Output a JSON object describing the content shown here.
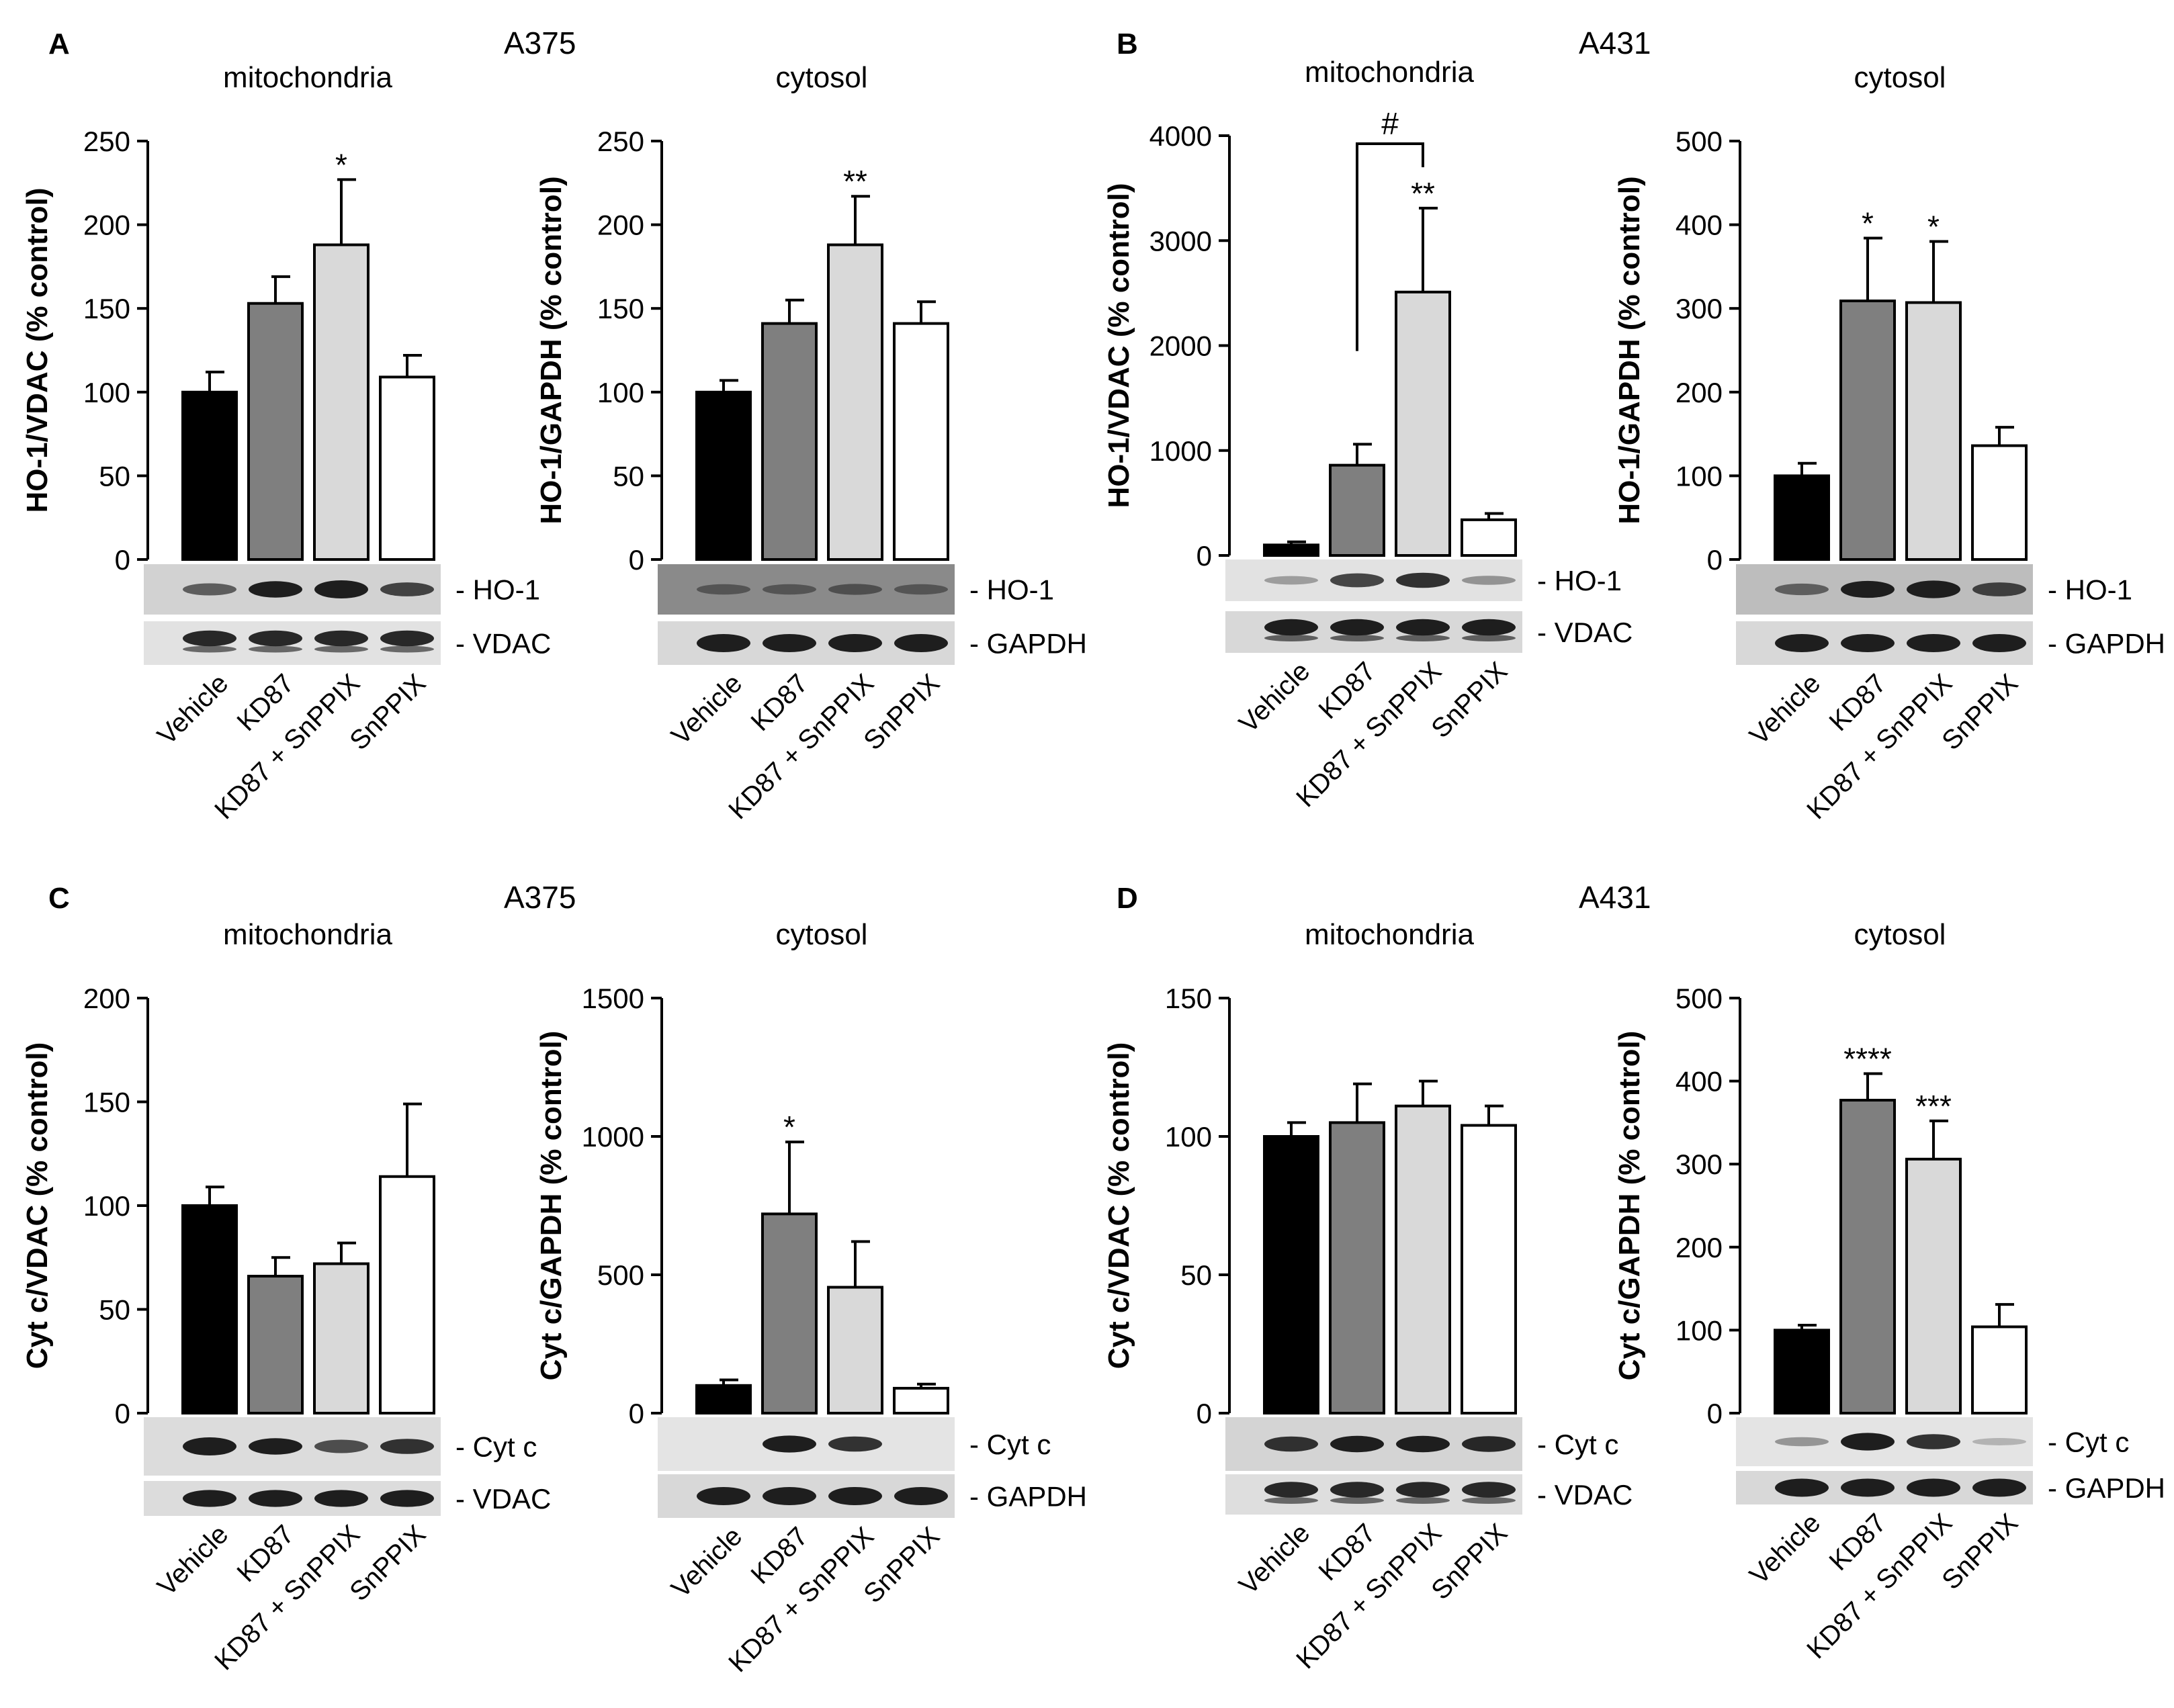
{
  "figure": {
    "panel_letters": [
      "A",
      "B",
      "C",
      "D"
    ],
    "cell_lines": [
      "A375",
      "A431",
      "A375",
      "A431"
    ]
  },
  "groups": [
    "Vehicle",
    "KD87",
    "KD87 + SnPPIX",
    "SnPPIX"
  ],
  "colors": {
    "bar_fills": [
      "#000000",
      "#7f7f7f",
      "#d9d9d9",
      "#ffffff"
    ],
    "band": "#1e1e1e"
  },
  "chart_data": [
    {
      "type": "bar",
      "panel": "A",
      "title": "mitochondria",
      "ylabel": "HO-1/VDAC (% control)",
      "categories": [
        "Vehicle",
        "KD87",
        "KD87 + SnPPIX",
        "SnPPIX"
      ],
      "values": [
        100,
        153,
        188,
        109
      ],
      "errors": [
        12,
        16,
        39,
        13
      ],
      "sig": [
        "",
        "",
        "*",
        ""
      ],
      "ylim": [
        0,
        250
      ],
      "yticks": [
        0,
        50,
        100,
        150,
        200,
        250
      ],
      "blots": [
        {
          "label": "- HO-1",
          "intensity": [
            0.45,
            0.8,
            0.95,
            0.6
          ],
          "bg": "#d2d2d2"
        },
        {
          "label": "- VDAC",
          "intensity": [
            0.75,
            0.75,
            0.75,
            0.75
          ],
          "bg": "#e2e2e2",
          "double": true
        }
      ]
    },
    {
      "type": "bar",
      "panel": "A",
      "title": "cytosol",
      "ylabel": "HO-1/GAPDH (% control)",
      "categories": [
        "Vehicle",
        "KD87",
        "KD87 + SnPPIX",
        "SnPPIX"
      ],
      "values": [
        100,
        141,
        188,
        141
      ],
      "errors": [
        7,
        14,
        29,
        13
      ],
      "sig": [
        "",
        "",
        "**",
        ""
      ],
      "ylim": [
        0,
        250
      ],
      "yticks": [
        0,
        50,
        100,
        150,
        200,
        250
      ],
      "blots": [
        {
          "label": "- HO-1",
          "intensity": [
            0.3,
            0.3,
            0.35,
            0.3
          ],
          "bg": "#8a8a8a"
        },
        {
          "label": "- GAPDH",
          "intensity": [
            0.95,
            0.95,
            0.95,
            0.95
          ],
          "bg": "#d8d8d8"
        }
      ]
    },
    {
      "type": "bar",
      "panel": "B",
      "title": "mitochondria",
      "ylabel": "HO-1/VDAC (% control)",
      "categories": [
        "Vehicle",
        "KD87",
        "KD87 + SnPPIX",
        "SnPPIX"
      ],
      "values": [
        100,
        860,
        2510,
        340
      ],
      "errors": [
        30,
        200,
        800,
        60
      ],
      "sig": [
        "",
        "",
        "**",
        ""
      ],
      "ylim": [
        0,
        4000
      ],
      "yticks": [
        0,
        1000,
        2000,
        3000,
        4000
      ],
      "bracket": {
        "from": 1,
        "to": 2,
        "label": "#"
      },
      "blots": [
        {
          "label": "- HO-1",
          "intensity": [
            0.15,
            0.6,
            0.7,
            0.2
          ],
          "bg": "#e2e2e2"
        },
        {
          "label": "- VDAC",
          "intensity": [
            0.8,
            0.8,
            0.8,
            0.8
          ],
          "bg": "#d8d8d8",
          "double": true
        }
      ]
    },
    {
      "type": "bar",
      "panel": "B",
      "title": "cytosol",
      "ylabel": "HO-1/GAPDH (% control)",
      "categories": [
        "Vehicle",
        "KD87",
        "KD87 + SnPPIX",
        "SnPPIX"
      ],
      "values": [
        100,
        309,
        307,
        136
      ],
      "errors": [
        15,
        75,
        73,
        22
      ],
      "sig": [
        "",
        "*",
        "*",
        ""
      ],
      "ylim": [
        0,
        500
      ],
      "yticks": [
        0,
        100,
        200,
        300,
        400,
        500
      ],
      "blots": [
        {
          "label": "- HO-1",
          "intensity": [
            0.4,
            0.85,
            0.9,
            0.6
          ],
          "bg": "#bdbdbd"
        },
        {
          "label": "- GAPDH",
          "intensity": [
            0.95,
            0.95,
            0.95,
            0.95
          ],
          "bg": "#d8d8d8"
        }
      ]
    },
    {
      "type": "bar",
      "panel": "C",
      "title": "mitochondria",
      "ylabel": "Cyt c/VDAC (% control)",
      "categories": [
        "Vehicle",
        "KD87",
        "KD87 + SnPPIX",
        "SnPPIX"
      ],
      "values": [
        100,
        66,
        72,
        114
      ],
      "errors": [
        9,
        9,
        10,
        35
      ],
      "sig": [
        "",
        "",
        "",
        ""
      ],
      "ylim": [
        0,
        200
      ],
      "yticks": [
        0,
        50,
        100,
        150,
        200
      ],
      "blots": [
        {
          "label": "- Cyt c",
          "intensity": [
            0.95,
            0.8,
            0.55,
            0.7
          ],
          "bg": "#dcdcdc"
        },
        {
          "label": "- VDAC",
          "intensity": [
            0.85,
            0.85,
            0.85,
            0.85
          ],
          "bg": "#dcdcdc"
        }
      ]
    },
    {
      "type": "bar",
      "panel": "C",
      "title": "cytosol",
      "ylabel": "Cyt c/GAPDH (% control)",
      "categories": [
        "Vehicle",
        "KD87",
        "KD87 + SnPPIX",
        "SnPPIX"
      ],
      "values": [
        100,
        720,
        455,
        90
      ],
      "errors": [
        20,
        260,
        165,
        15
      ],
      "sig": [
        "",
        "*",
        "",
        ""
      ],
      "ylim": [
        0,
        1500
      ],
      "yticks": [
        0,
        500,
        1000,
        1500
      ],
      "blots": [
        {
          "label": "- Cyt c",
          "intensity": [
            0.0,
            0.85,
            0.7,
            0.0
          ],
          "bg": "#e4e4e4"
        },
        {
          "label": "- GAPDH",
          "intensity": [
            0.95,
            0.95,
            0.95,
            0.95
          ],
          "bg": "#d8d8d8"
        }
      ]
    },
    {
      "type": "bar",
      "panel": "D",
      "title": "mitochondria",
      "ylabel": "Cyt c/VDAC (% control)",
      "categories": [
        "Vehicle",
        "KD87",
        "KD87 + SnPPIX",
        "SnPPIX"
      ],
      "values": [
        100,
        105,
        111,
        104
      ],
      "errors": [
        5,
        14,
        9,
        7
      ],
      "sig": [
        "",
        "",
        "",
        ""
      ],
      "ylim": [
        0,
        150
      ],
      "yticks": [
        0,
        50,
        100,
        150
      ],
      "blots": [
        {
          "label": "- Cyt c",
          "intensity": [
            0.7,
            0.8,
            0.8,
            0.75
          ],
          "bg": "#d4d4d4"
        },
        {
          "label": "- VDAC",
          "intensity": [
            0.75,
            0.75,
            0.75,
            0.75
          ],
          "bg": "#dedede",
          "double": true
        }
      ]
    },
    {
      "type": "bar",
      "panel": "D",
      "title": "cytosol",
      "ylabel": "Cyt c/GAPDH (% control)",
      "categories": [
        "Vehicle",
        "KD87",
        "KD87 + SnPPIX",
        "SnPPIX"
      ],
      "values": [
        100,
        377,
        306,
        104
      ],
      "errors": [
        6,
        32,
        46,
        27
      ],
      "sig": [
        "",
        "****",
        "***",
        ""
      ],
      "ylim": [
        0,
        500
      ],
      "yticks": [
        0,
        100,
        200,
        300,
        400,
        500
      ],
      "blots": [
        {
          "label": "- Cyt c",
          "intensity": [
            0.2,
            0.9,
            0.7,
            0.05
          ],
          "bg": "#e4e4e4"
        },
        {
          "label": "- GAPDH",
          "intensity": [
            0.95,
            0.95,
            0.95,
            0.95
          ],
          "bg": "#d8d8d8"
        }
      ]
    }
  ]
}
